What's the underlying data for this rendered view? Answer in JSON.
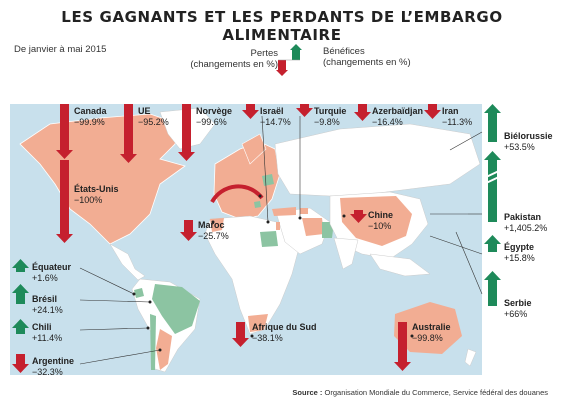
{
  "title": "LES GAGNANTS ET LES PERDANTS DE L’EMBARGO ALIMENTAIRE",
  "period": "De janvier à mai 2015",
  "legend": {
    "losses": "Pertes",
    "losses_sub": "(changements en %)",
    "gains": "Bénéfices",
    "gains_sub": "(changements en %)"
  },
  "colors": {
    "loss": "#c5202e",
    "gain": "#1e8a5a",
    "map_loss": "#f2ad93",
    "map_gain": "#8cc4a2",
    "water": "#c8e0ec",
    "land": "#ffffff"
  },
  "countries": {
    "canada": {
      "name": "Canada",
      "value": "−99.9%",
      "change": -99.9
    },
    "ue": {
      "name": "UE",
      "value": "−95.2%",
      "change": -95.2
    },
    "norvege": {
      "name": "Norvège",
      "value": "−99.6%",
      "change": -99.6
    },
    "israel": {
      "name": "Israël",
      "value": "−14.7%",
      "change": -14.7
    },
    "turquie": {
      "name": "Turquie",
      "value": "−9.8%",
      "change": -9.8
    },
    "azerbaidjan": {
      "name": "Azerbaïdjan",
      "value": "−16.4%",
      "change": -16.4
    },
    "iran": {
      "name": "Iran",
      "value": "−11.3%",
      "change": -11.3
    },
    "bielorussie": {
      "name": "Biélorussie",
      "value": "+53.5%",
      "change": 53.5
    },
    "etats_unis": {
      "name": "États-Unis",
      "value": "−100%",
      "change": -100
    },
    "maroc": {
      "name": "Maroc",
      "value": "−25.7%",
      "change": -25.7
    },
    "chine": {
      "name": "Chine",
      "value": "−10%",
      "change": -10
    },
    "pakistan": {
      "name": "Pakistan",
      "value": "+1,405.2%",
      "change": 1405.2
    },
    "egypte": {
      "name": "Égypte",
      "value": "+15.8%",
      "change": 15.8
    },
    "equateur": {
      "name": "Équateur",
      "value": "+1.6%",
      "change": 1.6
    },
    "bresil": {
      "name": "Brésil",
      "value": "+24.1%",
      "change": 24.1
    },
    "chili": {
      "name": "Chili",
      "value": "+11.4%",
      "change": 11.4
    },
    "serbie": {
      "name": "Serbie",
      "value": "+66%",
      "change": 66
    },
    "afrique_sud": {
      "name": "Afrique du Sud",
      "value": "−38.1%",
      "change": -38.1
    },
    "australie": {
      "name": "Australie",
      "value": "−99.8%",
      "change": -99.8
    },
    "argentine": {
      "name": "Argentine",
      "value": "−32.3%",
      "change": -32.3
    }
  },
  "source": {
    "label": "Source :",
    "text": "Organisation Mondiale du Commerce, Service fédéral des douanes"
  }
}
